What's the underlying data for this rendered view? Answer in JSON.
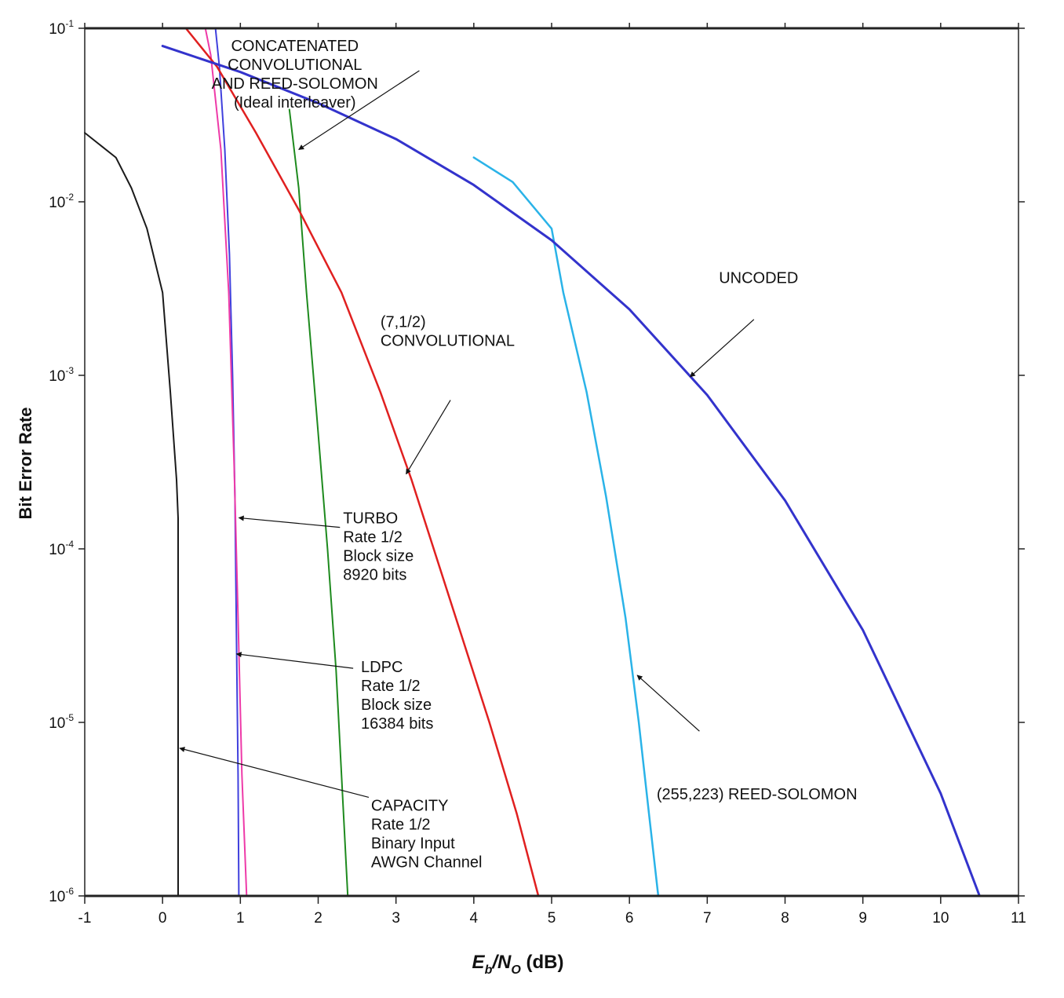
{
  "chart_data": {
    "type": "line",
    "xlabel": {
      "prefix": "E",
      "sub1": "b",
      "slash": "/N",
      "sub2": "O",
      "suffix": " (dB)"
    },
    "ylabel": "Bit Error Rate",
    "xlim": [
      -1,
      11
    ],
    "ylim": [
      1e-06,
      0.1
    ],
    "yscale": "log",
    "x_ticks": [
      "-1",
      "0",
      "1",
      "2",
      "3",
      "4",
      "5",
      "6",
      "7",
      "8",
      "9",
      "10",
      "11"
    ],
    "y_ticks": [
      {
        "base": "10",
        "exp": "-1",
        "value": 0.1
      },
      {
        "base": "10",
        "exp": "-2",
        "value": 0.01
      },
      {
        "base": "10",
        "exp": "-3",
        "value": 0.001
      },
      {
        "base": "10",
        "exp": "-4",
        "value": 0.0001
      },
      {
        "base": "10",
        "exp": "-5",
        "value": 1e-05
      },
      {
        "base": "10",
        "exp": "-6",
        "value": 1e-06
      }
    ],
    "series": [
      {
        "key": "capacity",
        "color": "#1a1a1a",
        "width": 2,
        "points": [
          [
            -1,
            0.025
          ],
          [
            -0.6,
            0.018
          ],
          [
            -0.4,
            0.012
          ],
          [
            -0.2,
            0.007
          ],
          [
            0,
            0.003
          ],
          [
            0.1,
            0.0008
          ],
          [
            0.18,
            0.00025
          ],
          [
            0.2,
            0.00015
          ],
          [
            0.2,
            1e-06
          ]
        ]
      },
      {
        "key": "turbo",
        "color": "#4040dd",
        "width": 2,
        "points": [
          [
            0.68,
            0.1
          ],
          [
            0.73,
            0.06
          ],
          [
            0.8,
            0.02
          ],
          [
            0.86,
            0.005
          ],
          [
            0.9,
            0.001
          ],
          [
            0.93,
            0.0002
          ],
          [
            0.95,
            3e-05
          ],
          [
            0.97,
            5e-06
          ],
          [
            0.98,
            1e-06
          ]
        ]
      },
      {
        "key": "ldpc",
        "color": "#ee3aa8",
        "width": 2,
        "points": [
          [
            0.55,
            0.1
          ],
          [
            0.62,
            0.07
          ],
          [
            0.75,
            0.02
          ],
          [
            0.85,
            0.003
          ],
          [
            0.92,
            0.0003
          ],
          [
            0.97,
            4e-05
          ],
          [
            1.02,
            5e-06
          ],
          [
            1.08,
            1e-06
          ]
        ]
      },
      {
        "key": "concatenated",
        "color": "#1e8a1e",
        "width": 2,
        "points": [
          [
            1.63,
            0.034
          ],
          [
            1.75,
            0.012
          ],
          [
            1.85,
            0.003
          ],
          [
            1.98,
            0.0006
          ],
          [
            2.12,
            0.0001
          ],
          [
            2.23,
            2e-05
          ],
          [
            2.3,
            5e-06
          ],
          [
            2.38,
            1e-06
          ]
        ]
      },
      {
        "key": "convolutional",
        "color": "#e02020",
        "width": 2.5,
        "points": [
          [
            0.3,
            0.1
          ],
          [
            0.7,
            0.06
          ],
          [
            1.2,
            0.025
          ],
          [
            1.75,
            0.009
          ],
          [
            2.3,
            0.003
          ],
          [
            2.8,
            0.0008
          ],
          [
            3.2,
            0.00025
          ],
          [
            3.7,
            5e-05
          ],
          [
            4.2,
            1e-05
          ],
          [
            4.55,
            3e-06
          ],
          [
            4.83,
            1e-06
          ]
        ]
      },
      {
        "key": "reed_solomon",
        "color": "#2ab3e8",
        "width": 2.5,
        "points": [
          [
            4,
            0.018
          ],
          [
            4.5,
            0.013
          ],
          [
            5,
            0.007
          ],
          [
            5.15,
            0.003
          ],
          [
            5.45,
            0.0008
          ],
          [
            5.7,
            0.0002
          ],
          [
            5.95,
            4e-05
          ],
          [
            6.12,
            1e-05
          ],
          [
            6.25,
            3e-06
          ],
          [
            6.37,
            1e-06
          ]
        ]
      },
      {
        "key": "uncoded",
        "color": "#3333cc",
        "width": 3,
        "points": [
          [
            0,
            0.079
          ],
          [
            1,
            0.056
          ],
          [
            2,
            0.037
          ],
          [
            3,
            0.023
          ],
          [
            4,
            0.0125
          ],
          [
            5,
            0.006
          ],
          [
            6,
            0.0024
          ],
          [
            7,
            0.00077
          ],
          [
            8,
            0.00019
          ],
          [
            9,
            3.4e-05
          ],
          [
            10,
            3.9e-06
          ],
          [
            10.5,
            1e-06
          ]
        ]
      }
    ],
    "annotations": [
      {
        "key": "concat",
        "lines": [
          "CONCATENATED",
          "CONVOLUTIONAL",
          "AND REED-SOLOMON",
          "(Ideal interleaver)"
        ],
        "text_x": 1.7,
        "text_y": 0.074,
        "align": "middle",
        "arrow_from": [
          3.3,
          0.057
        ],
        "arrow_to": [
          1.75,
          0.02
        ]
      },
      {
        "key": "uncoded",
        "lines": [
          "UNCODED"
        ],
        "text_x": 7.15,
        "text_y": 0.0034,
        "align": "start",
        "arrow_from": [
          7.6,
          0.0021
        ],
        "arrow_to": [
          6.78,
          0.00098
        ]
      },
      {
        "key": "conv",
        "lines": [
          "(7,1/2)",
          "CONVOLUTIONAL"
        ],
        "text_x": 2.8,
        "text_y": 0.0019,
        "align": "start",
        "arrow_from": [
          3.7,
          0.00072
        ],
        "arrow_to": [
          3.13,
          0.00027
        ]
      },
      {
        "key": "turbo",
        "lines": [
          "TURBO",
          "Rate 1/2",
          "Block size",
          "8920 bits"
        ],
        "text_x": 2.32,
        "text_y": 0.00014,
        "align": "start",
        "arrow_from": [
          2.28,
          0.000133
        ],
        "arrow_to": [
          0.98,
          0.000151
        ]
      },
      {
        "key": "ldpc",
        "lines": [
          "LDPC",
          "Rate 1/2",
          "Block size",
          "16384 bits"
        ],
        "text_x": 2.55,
        "text_y": 1.95e-05,
        "align": "start",
        "arrow_from": [
          2.45,
          2.05e-05
        ],
        "arrow_to": [
          0.95,
          2.48e-05
        ]
      },
      {
        "key": "rs",
        "lines": [
          "(255,223) REED-SOLOMON"
        ],
        "text_x": 6.35,
        "text_y": 3.6e-06,
        "align": "start",
        "arrow_from": [
          6.9,
          8.9e-06
        ],
        "arrow_to": [
          6.1,
          1.87e-05
        ]
      },
      {
        "key": "capacity",
        "lines": [
          "CAPACITY",
          "Rate 1/2",
          "Binary Input",
          "AWGN Channel"
        ],
        "text_x": 2.68,
        "text_y": 3.1e-06,
        "align": "start",
        "arrow_from": [
          2.65,
          3.7e-06
        ],
        "arrow_to": [
          0.22,
          7.1e-06
        ]
      }
    ],
    "grid": false,
    "legend": "none"
  }
}
